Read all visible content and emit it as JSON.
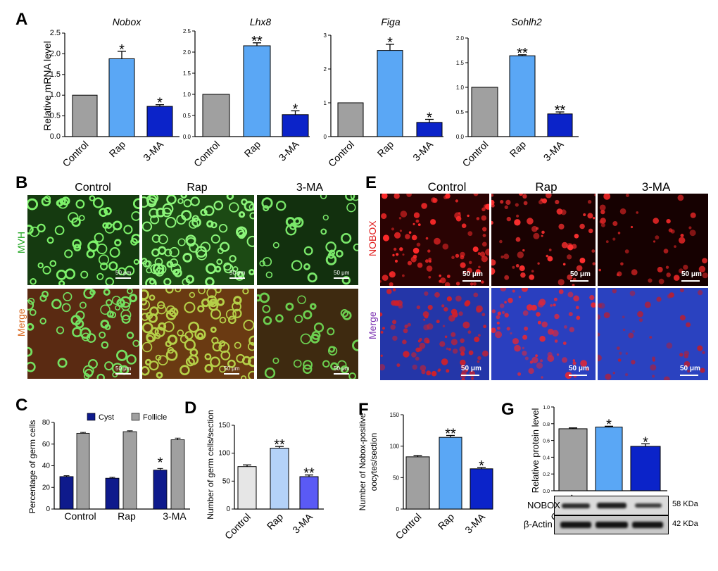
{
  "panel_letters": {
    "A": "A",
    "B": "B",
    "C": "C",
    "D": "D",
    "E": "E",
    "F": "F",
    "G": "G"
  },
  "panelB": {
    "columns": [
      "Control",
      "Rap",
      "3-MA"
    ],
    "row_labels": [
      "MVH",
      "Merge"
    ],
    "scale_label": "50 μm"
  },
  "panelE": {
    "columns": [
      "Control",
      "Rap",
      "3-MA"
    ],
    "row_labels": [
      "NOBOX",
      "Merge"
    ],
    "scale_label": "50 μm"
  },
  "panelG_blot": {
    "bands": [
      {
        "label": "NOBOX",
        "size": "58 KDa"
      },
      {
        "label": "β-Actin",
        "size": "42 KDa"
      }
    ]
  },
  "colors": {
    "control": "#a0a0a0",
    "rap": "#5aa7f5",
    "ma": "#0b23c9",
    "cyst": "#0e1a8c",
    "follicle": "#a0a0a0",
    "d_control": "#e6e6e6",
    "d_rap": "#b4d2f8",
    "d_ma": "#5a5af5"
  },
  "chart_data": [
    {
      "id": "A1",
      "type": "bar",
      "title": "Nobox",
      "ylabel": "Relative mRNA level",
      "categories": [
        "Control",
        "Rap",
        "3-MA"
      ],
      "values": [
        1.0,
        1.88,
        0.73
      ],
      "errors": [
        0,
        0.18,
        0.04
      ],
      "ylim": [
        0,
        2.5
      ],
      "yticks": [
        "0.0",
        "0.5",
        "1.0",
        "1.5",
        "2.0",
        "2.5"
      ],
      "sig": [
        "",
        "*",
        "*"
      ]
    },
    {
      "id": "A2",
      "type": "bar",
      "title": "Lhx8",
      "ylabel": "",
      "categories": [
        "Control",
        "Rap",
        "3-MA"
      ],
      "values": [
        1.0,
        2.15,
        0.52
      ],
      "errors": [
        0,
        0.07,
        0.09
      ],
      "ylim": [
        0,
        2.5
      ],
      "yticks": [
        "0.0",
        "0.5",
        "1.0",
        "1.5",
        "2.0",
        "2.5"
      ],
      "sig": [
        "",
        "**",
        "*"
      ]
    },
    {
      "id": "A3",
      "type": "bar",
      "title": "Figa",
      "ylabel": "",
      "categories": [
        "Control",
        "Rap",
        "3-MA"
      ],
      "values": [
        1.0,
        2.55,
        0.42
      ],
      "errors": [
        0,
        0.18,
        0.09
      ],
      "ylim": [
        0,
        3
      ],
      "yticks": [
        "0",
        "1",
        "2",
        "3"
      ],
      "sig": [
        "",
        "*",
        "*"
      ]
    },
    {
      "id": "A4",
      "type": "bar",
      "title": "Sohlh2",
      "ylabel": "",
      "categories": [
        "Control",
        "Rap",
        "3-MA"
      ],
      "values": [
        1.0,
        1.64,
        0.46
      ],
      "errors": [
        0,
        0.02,
        0.04
      ],
      "ylim": [
        0,
        2.0
      ],
      "yticks": [
        "0.0",
        "0.5",
        "1.0",
        "1.5",
        "2.0"
      ],
      "sig": [
        "",
        "**",
        "**"
      ]
    },
    {
      "id": "C",
      "type": "bar",
      "title": "",
      "ylabel": "Percentage of germ cells",
      "categories": [
        "Control",
        "Rap",
        "3-MA"
      ],
      "series": [
        {
          "name": "Cyst",
          "values": [
            30,
            28.5,
            36
          ],
          "errors": [
            0.8,
            0.8,
            1.5
          ],
          "sig": [
            "",
            "",
            "*"
          ]
        },
        {
          "name": "Follicle",
          "values": [
            70,
            71.5,
            64
          ],
          "errors": [
            0.8,
            0.8,
            1.5
          ],
          "sig": [
            "",
            "",
            ""
          ]
        }
      ],
      "ylim": [
        0,
        80
      ],
      "yticks": [
        "0",
        "20",
        "40",
        "60",
        "80"
      ],
      "legend": "top"
    },
    {
      "id": "D",
      "type": "bar",
      "title": "",
      "ylabel": "Number of germ cells/section",
      "categories": [
        "Control",
        "Rap",
        "3-MA"
      ],
      "values": [
        76,
        109,
        58
      ],
      "errors": [
        3,
        3,
        3
      ],
      "ylim": [
        0,
        150
      ],
      "yticks": [
        "0",
        "50",
        "100",
        "150"
      ],
      "sig": [
        "",
        "**",
        "**"
      ]
    },
    {
      "id": "F",
      "type": "bar",
      "title": "",
      "ylabel": "Number of Nobox-positive oocytes/section",
      "categories": [
        "Control",
        "Rap",
        "3-MA"
      ],
      "values": [
        83,
        114,
        64
      ],
      "errors": [
        2,
        3,
        2
      ],
      "ylim": [
        0,
        150
      ],
      "yticks": [
        "0",
        "50",
        "100",
        "150"
      ],
      "sig": [
        "",
        "**",
        "*"
      ]
    },
    {
      "id": "G",
      "type": "bar",
      "title": "",
      "ylabel": "Relative protein level",
      "categories": [
        "Control",
        "Rap",
        "3-MA"
      ],
      "values": [
        0.74,
        0.76,
        0.53
      ],
      "errors": [
        0.01,
        0.01,
        0.03
      ],
      "ylim": [
        0,
        1.0
      ],
      "yticks": [
        "0.0",
        "0.2",
        "0.4",
        "0.6",
        "0.8",
        "1.0"
      ],
      "sig": [
        "",
        "*",
        "*"
      ]
    }
  ]
}
